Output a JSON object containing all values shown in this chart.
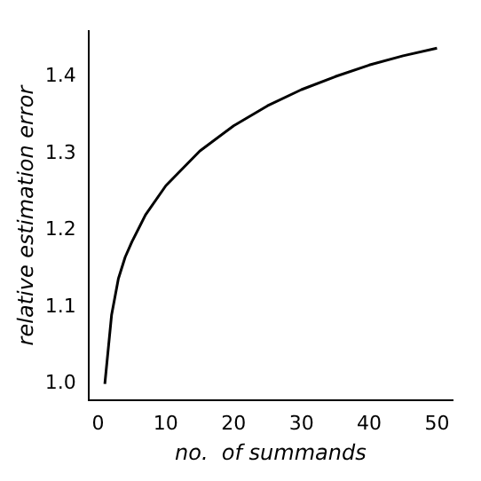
{
  "chart_data": {
    "type": "line",
    "xlabel": "no.  of summands",
    "ylabel": "relative estimation error",
    "x": [
      1,
      2,
      3,
      4,
      5,
      7,
      10,
      15,
      20,
      25,
      30,
      35,
      40,
      45,
      50
    ],
    "series": [
      {
        "color": "#000000",
        "values": [
          1.0,
          1.09,
          1.137,
          1.165,
          1.185,
          1.22,
          1.258,
          1.303,
          1.336,
          1.362,
          1.383,
          1.4,
          1.415,
          1.427,
          1.437
        ]
      }
    ],
    "xlim": [
      -1.4,
      52.3
    ],
    "ylim": [
      0.979,
      1.459
    ],
    "xticks": [
      0,
      10,
      20,
      30,
      40,
      50
    ],
    "yticks": [
      {
        "value": 1,
        "label": "1.0"
      },
      1.1,
      1.2,
      1.3,
      1.4
    ],
    "grid": false,
    "legend": false,
    "marker": "none",
    "line_style": "solid"
  }
}
